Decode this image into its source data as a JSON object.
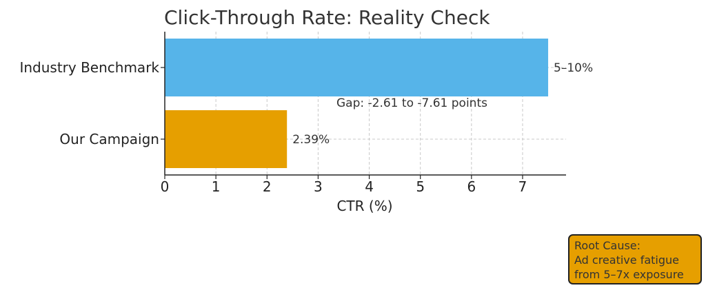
{
  "chart_data": {
    "type": "bar",
    "orientation": "horizontal",
    "title": "Click-Through Rate: Reality Check",
    "xlabel": "CTR (%)",
    "ylabel": "",
    "xlim": [
      0,
      7.85
    ],
    "xticks": [
      0,
      1,
      2,
      3,
      4,
      5,
      6,
      7
    ],
    "grid": true,
    "categories": [
      "Our Campaign",
      "Industry Benchmark"
    ],
    "values": [
      2.39,
      7.5
    ],
    "bar_labels": [
      "2.39%",
      "5–10%"
    ],
    "colors": [
      "#e69f00",
      "#56b4e9"
    ],
    "annotation": "Gap: -2.61 to -7.61 points"
  },
  "note": {
    "lines": [
      "Root Cause:",
      "Ad creative fatigue",
      "from 5–7x exposure"
    ],
    "color": "#e69f00"
  }
}
